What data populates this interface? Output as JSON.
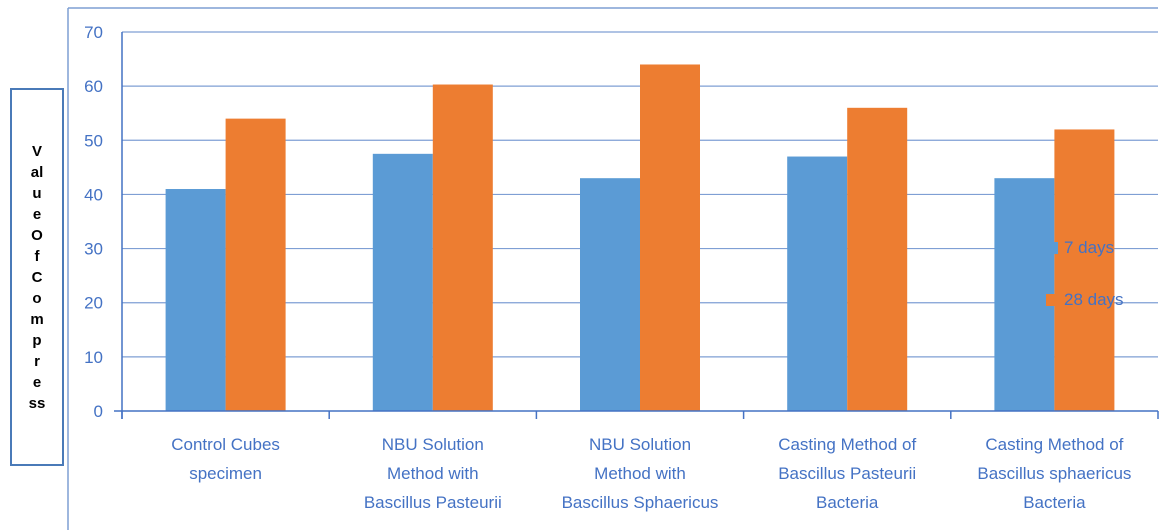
{
  "chart_data": {
    "type": "bar",
    "title": "",
    "xlabel": "",
    "ylabel_lines": [
      "V",
      "al",
      "u",
      "e",
      "O",
      "f",
      "C",
      "o",
      "m",
      "p",
      "r",
      "e",
      "ss"
    ],
    "ylim": [
      0,
      70
    ],
    "yticks": [
      0,
      10,
      20,
      30,
      40,
      50,
      60,
      70
    ],
    "grid": true,
    "legend_position": "right",
    "categories": [
      [
        "Control Cubes",
        "specimen"
      ],
      [
        "NBU Solution",
        "Method with",
        "Bascillus Pasteurii"
      ],
      [
        "NBU Solution",
        "Method with",
        "Bascillus Sphaericus"
      ],
      [
        "Casting Method of",
        "Bascillus Pasteurii",
        "Bacteria"
      ],
      [
        "Casting Method of",
        "Bascillus sphaericus",
        "Bacteria"
      ]
    ],
    "series": [
      {
        "name": "7 days",
        "color": "#5b9bd5",
        "values": [
          41,
          47.5,
          43,
          47,
          43
        ]
      },
      {
        "name": "28 days",
        "color": "#ed7d31",
        "values": [
          54,
          60.3,
          64,
          56,
          52
        ]
      }
    ],
    "colors": {
      "axis": "#4472c4",
      "grid": "#7f9fd4",
      "tick_text": "#4472c4"
    }
  }
}
